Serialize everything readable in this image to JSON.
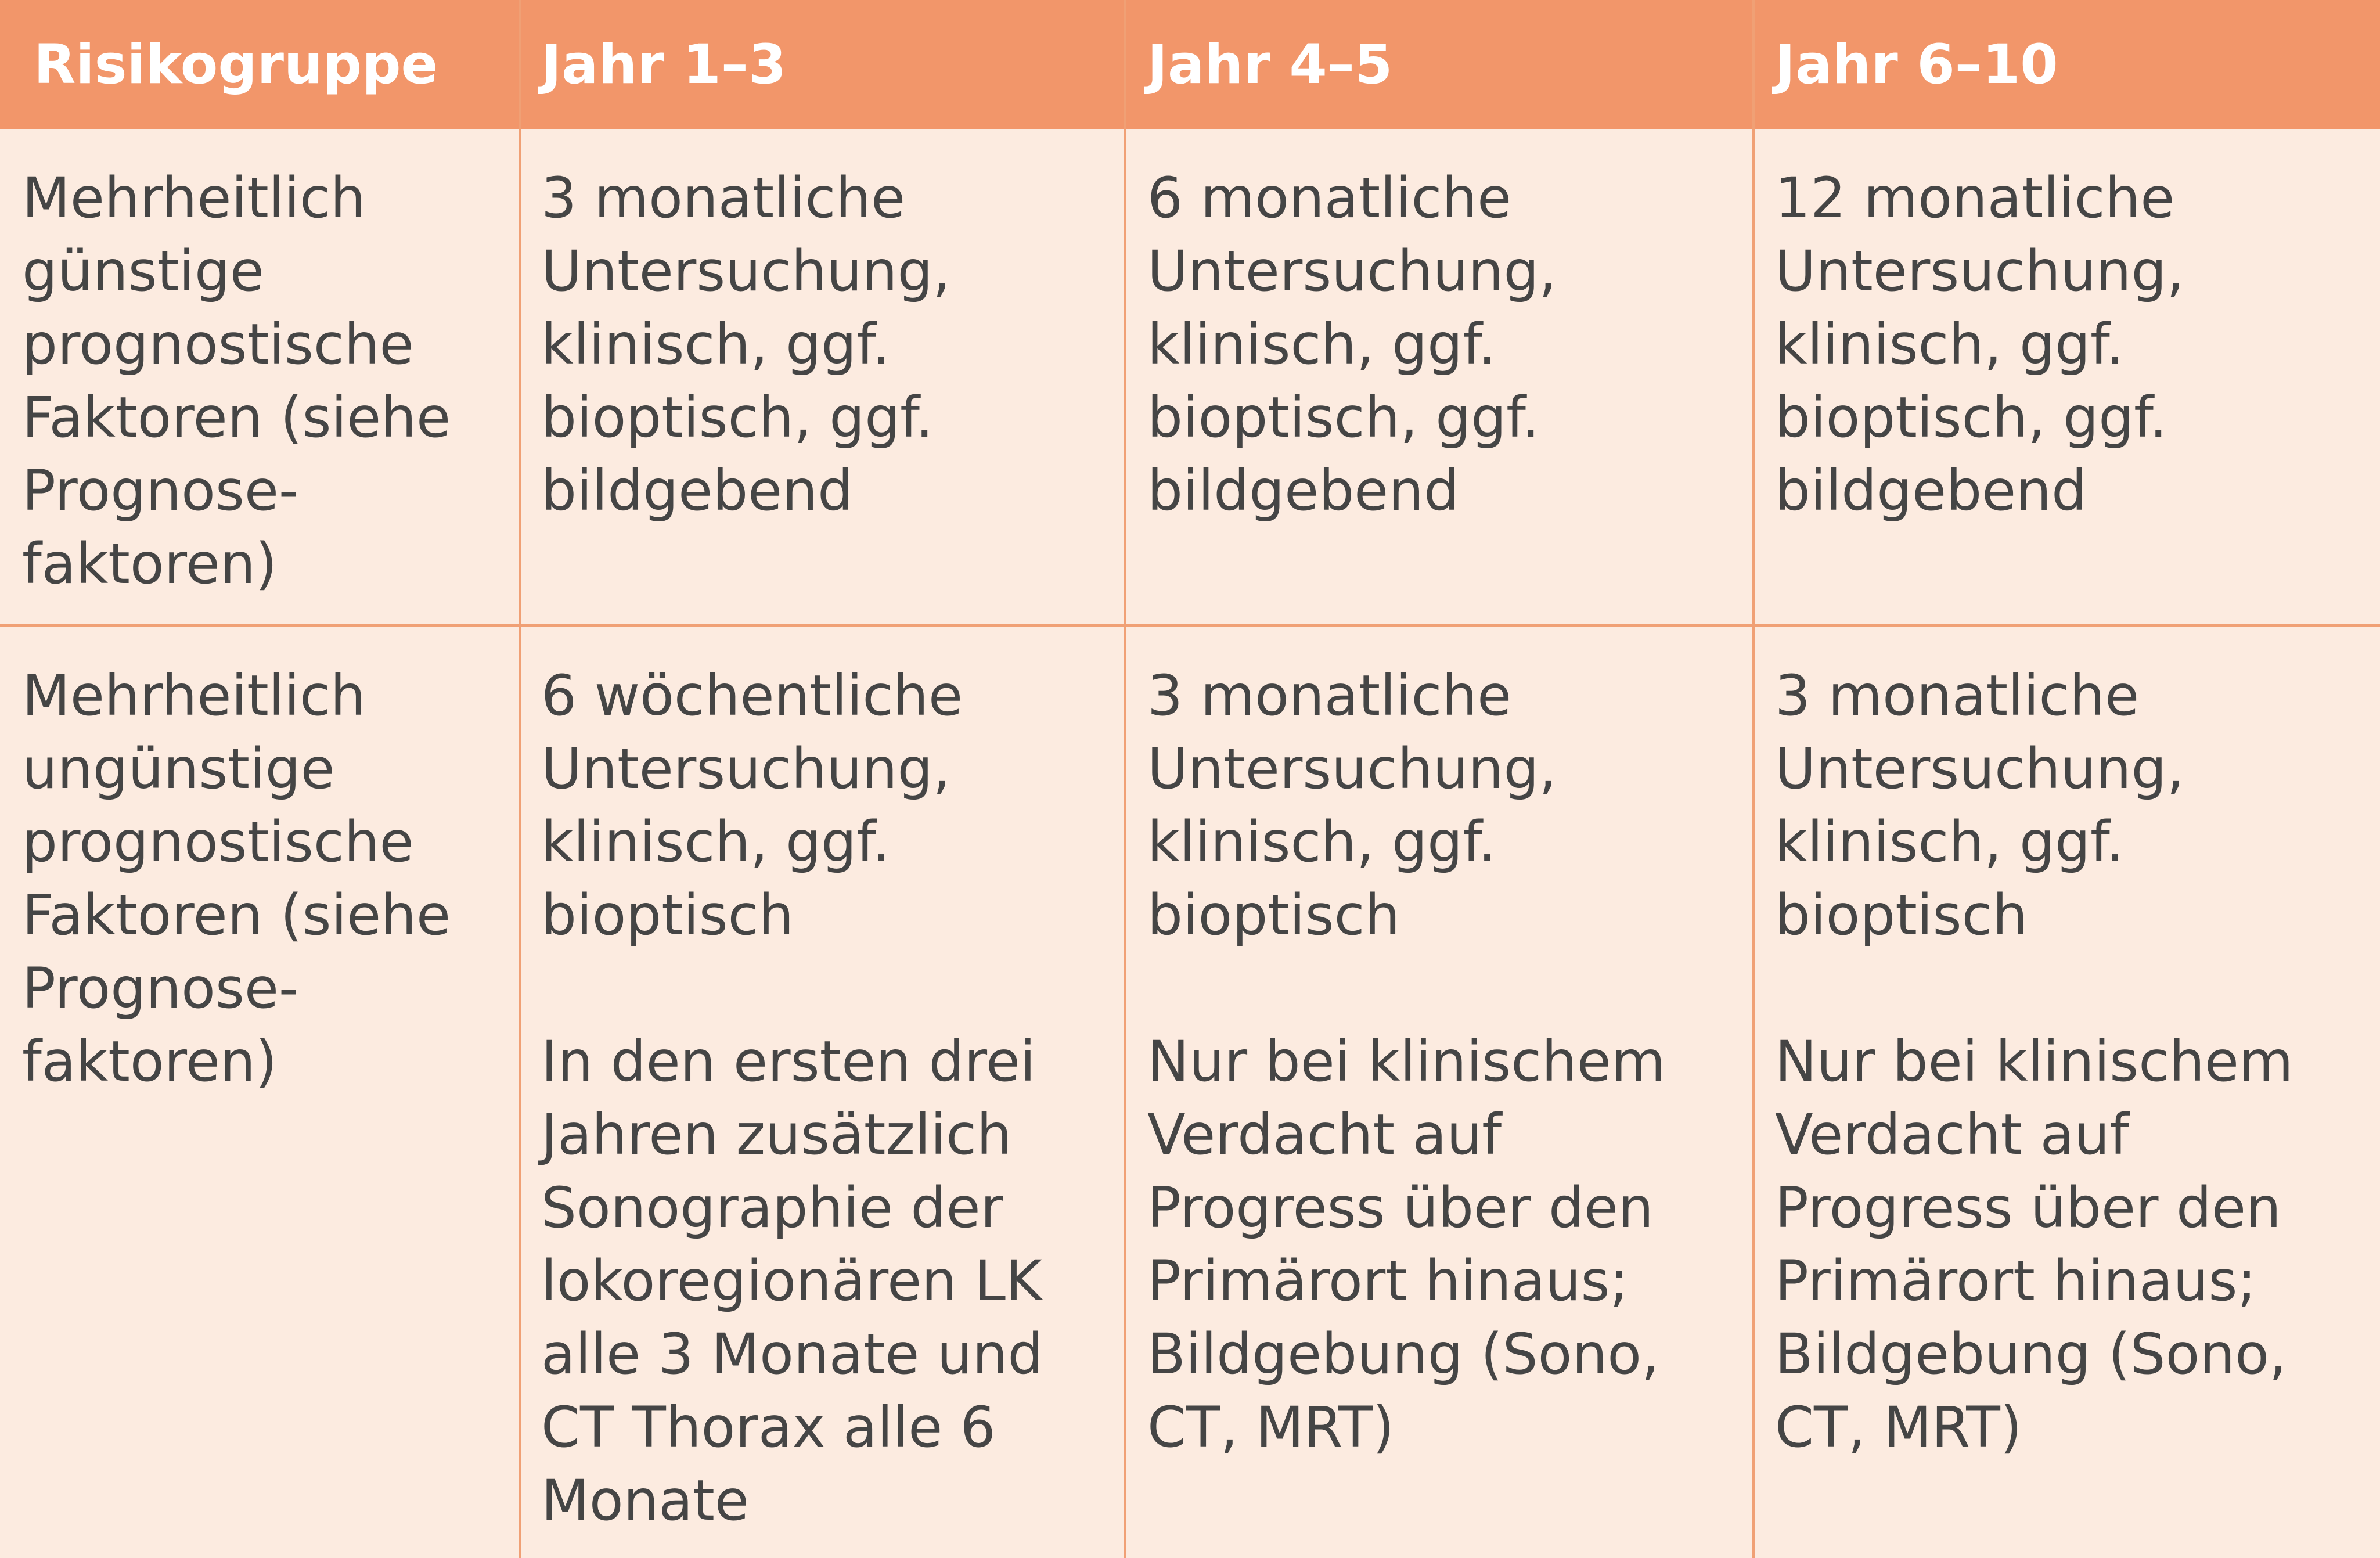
{
  "table": {
    "headers": [
      "Risikogruppe",
      "Jahr 1–3",
      "Jahr 4–5",
      "Jahr 6–10"
    ],
    "rows": [
      {
        "risk_group": "Mehrheitlich günstige prognostische Faktoren (siehe Prognose-faktoren)",
        "year_1_3": "3 monatliche Untersuchung, klinisch, ggf. bioptisch, ggf. bildgebend",
        "year_4_5": "6 monatliche Untersuchung, klinisch, ggf. bioptisch, ggf. bildgebend",
        "year_6_10": "12 monatliche Untersuchung, klinisch, ggf. bioptisch, ggf. bildgebend"
      },
      {
        "risk_group": "Mehrheitlich ungünstige prognostische Faktoren (siehe Prognose-faktoren)",
        "year_1_3": "6 wöchentliche Untersuchung, klinisch, ggf. bioptisch",
        "year_1_3_note": "In den ersten drei Jahren zusätzlich Sonographie der lokoregionären LK alle 3 Monate und CT Thorax alle 6 Monate",
        "year_4_5": "3 monatliche Untersuchung, klinisch, ggf. bioptisch",
        "year_4_5_note": "Nur bei klinischem Verdacht auf Progress über den Primärort hinaus; Bildgebung (Sono, CT, MRT)",
        "year_6_10": "3 monatliche Untersuchung, klinisch, ggf. bioptisch",
        "year_6_10_note": "Nur bei klinischem Verdacht auf Progress über den Primärort hinaus; Bildgebung (Sono, CT, MRT)"
      }
    ]
  },
  "colors": {
    "header_bg": "#f2966a",
    "body_bg": "#fcebe0",
    "grid_line": "#f0a075",
    "body_text": "#454545",
    "header_text": "#ffffff"
  }
}
